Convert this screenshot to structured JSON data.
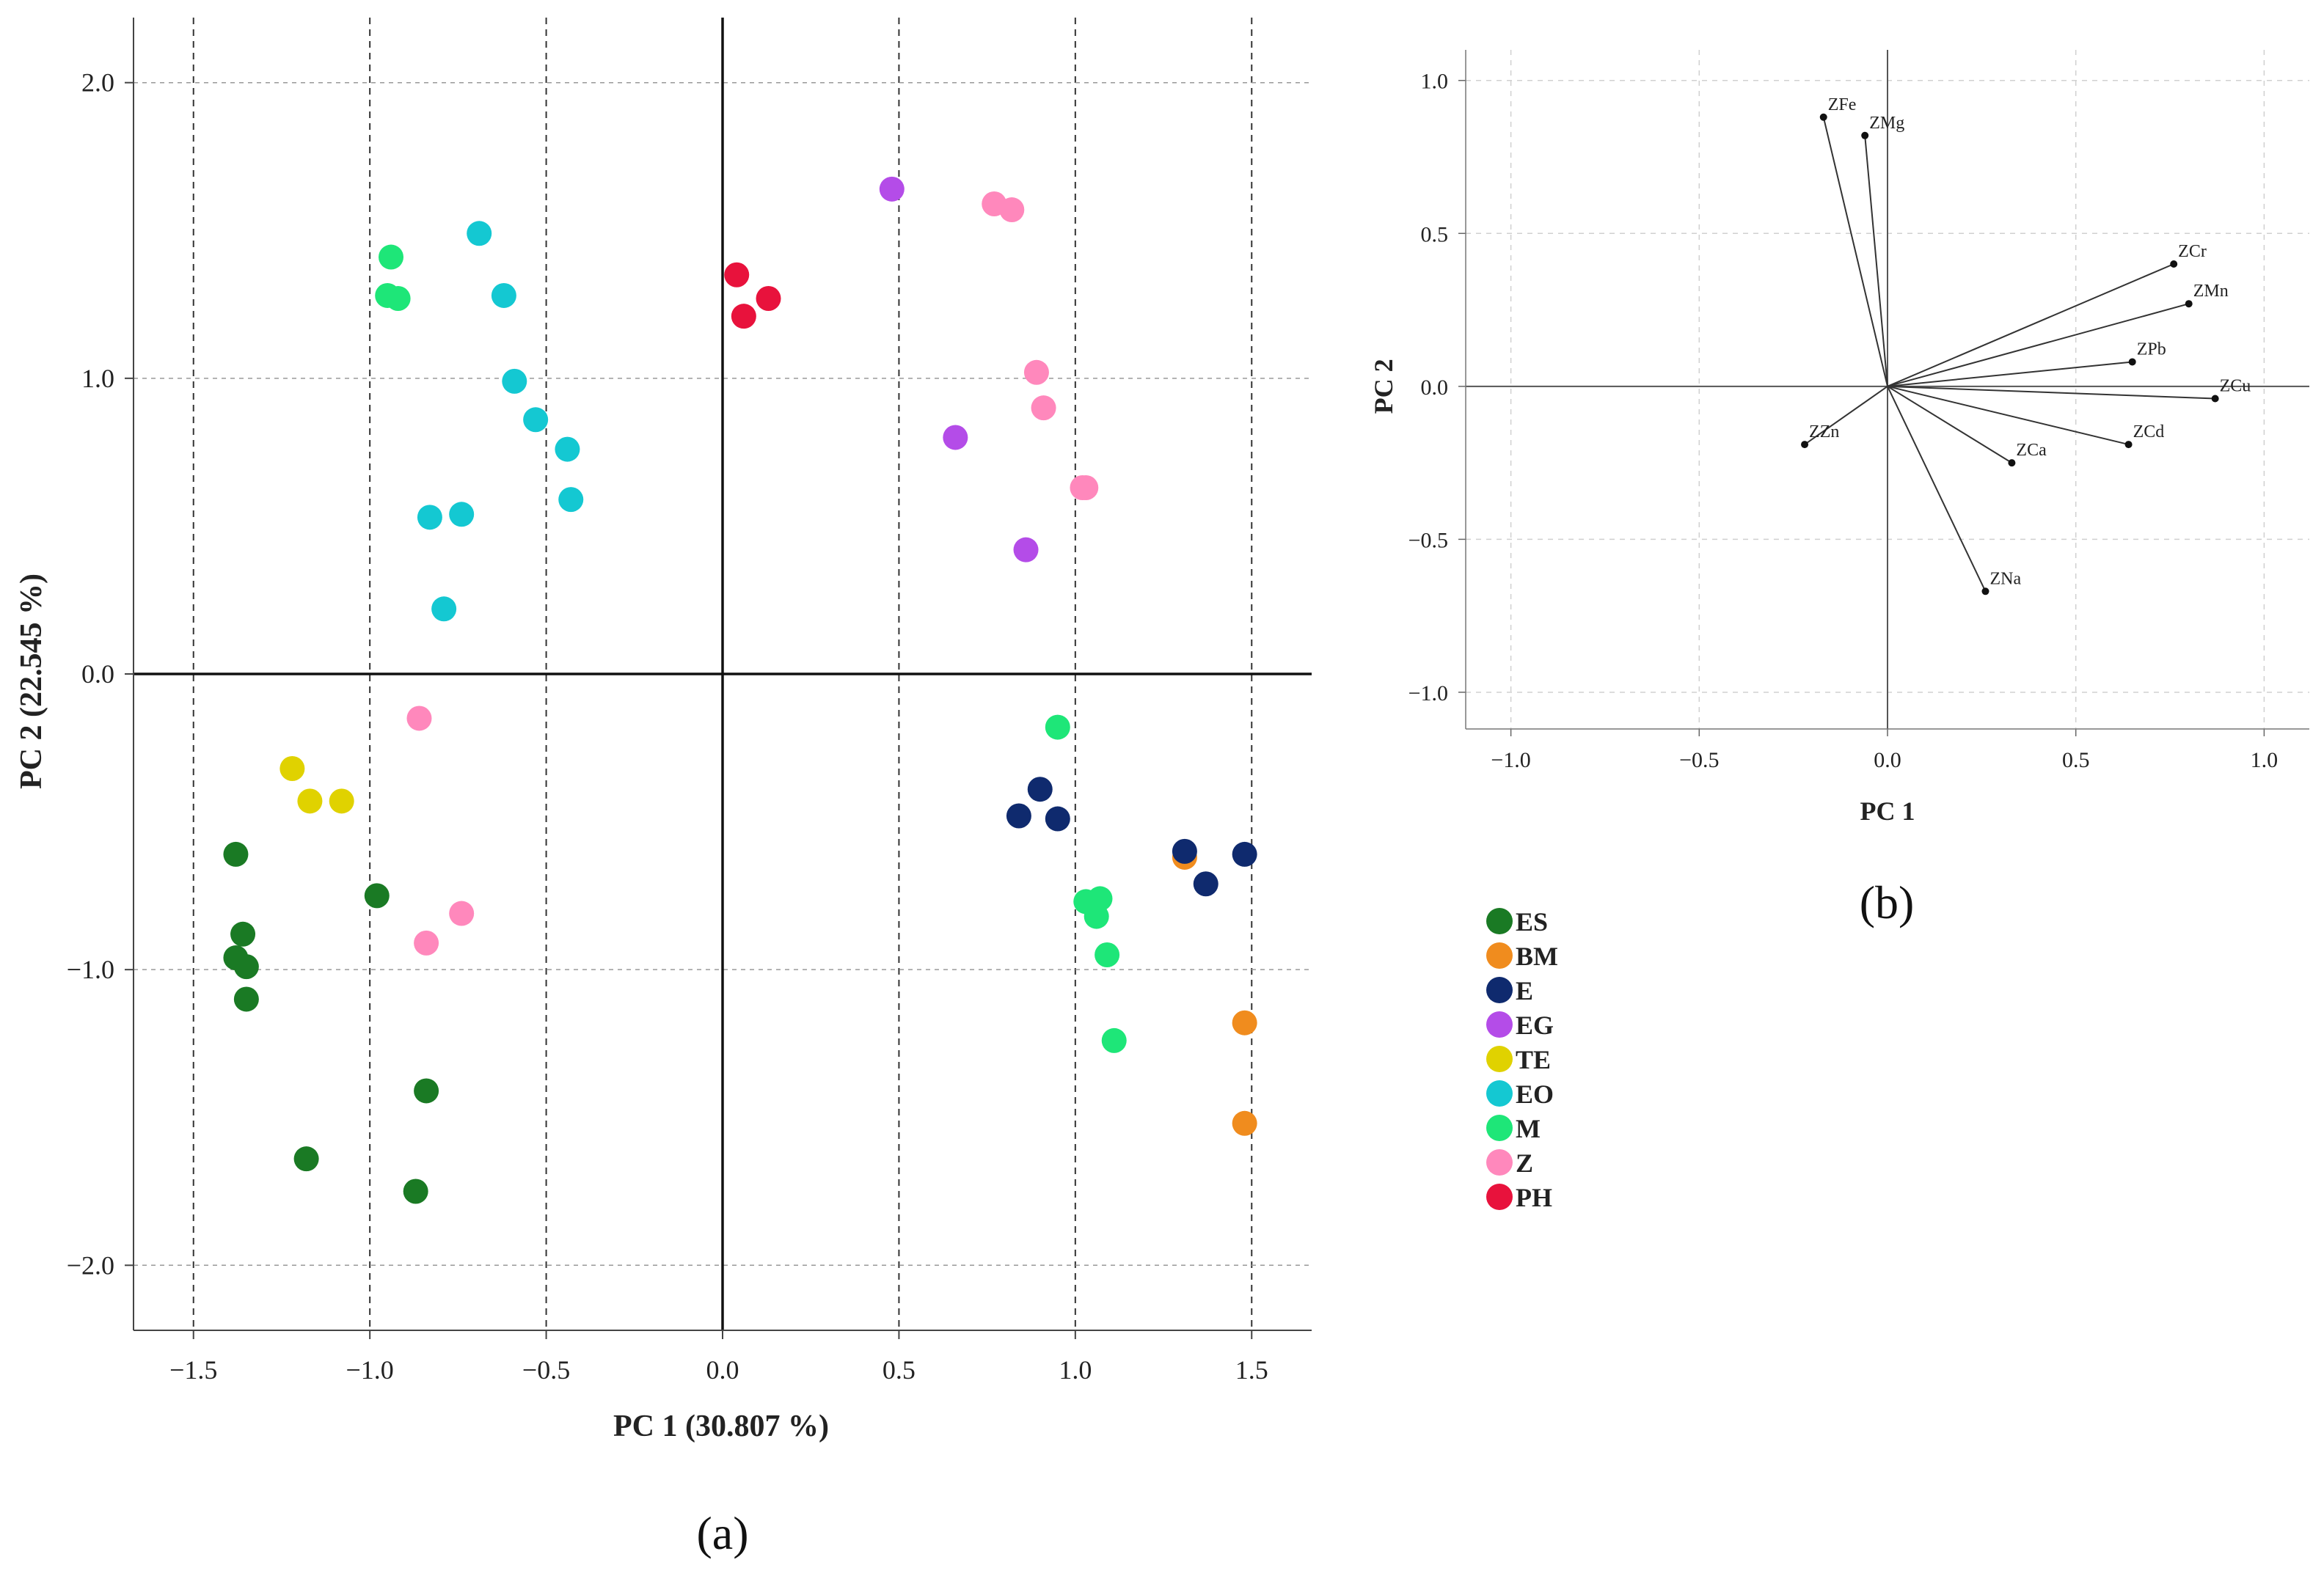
{
  "chart_data": [
    {
      "id": "a",
      "type": "scatter",
      "panel_label": "(a)",
      "xlabel": "PC 1 (30.807 %)",
      "ylabel": "PC 2 (22.545 %)",
      "xlim": [
        -1.67,
        1.67
      ],
      "ylim": [
        -2.22,
        2.22
      ],
      "xticks": [
        -1.5,
        -1.0,
        -0.5,
        0.0,
        0.5,
        1.0,
        1.5
      ],
      "xtick_labels": [
        "−1.5",
        "−1.0",
        "−0.5",
        "0.0",
        "0.5",
        "1.0",
        "1.5"
      ],
      "yticks": [
        -2.0,
        -1.0,
        0.0,
        1.0,
        2.0
      ],
      "ytick_labels": [
        "−2.0",
        "−1.0",
        "0.0",
        "1.0",
        "2.0"
      ],
      "grid": true,
      "legend_placement": "bottom-right-outside",
      "series": [
        {
          "name": "ES",
          "color": "#1a7a24",
          "points": [
            [
              -1.38,
              -0.61
            ],
            [
              -1.36,
              -0.88
            ],
            [
              -1.38,
              -0.96
            ],
            [
              -1.35,
              -0.99
            ],
            [
              -1.35,
              -1.1
            ],
            [
              -0.98,
              -0.75
            ],
            [
              -1.18,
              -1.64
            ],
            [
              -0.84,
              -1.41
            ],
            [
              -0.87,
              -1.75
            ]
          ]
        },
        {
          "name": "BM",
          "color": "#f08c1e",
          "points": [
            [
              1.31,
              -0.62
            ],
            [
              1.48,
              -1.18
            ],
            [
              1.48,
              -1.52
            ]
          ]
        },
        {
          "name": "E",
          "color": "#0f2a6e",
          "points": [
            [
              0.84,
              -0.48
            ],
            [
              0.9,
              -0.39
            ],
            [
              0.95,
              -0.49
            ],
            [
              1.31,
              -0.6
            ],
            [
              1.37,
              -0.71
            ],
            [
              1.48,
              -0.61
            ]
          ]
        },
        {
          "name": "EG",
          "color": "#b44ce8",
          "points": [
            [
              0.48,
              1.64
            ],
            [
              0.66,
              0.8
            ],
            [
              0.86,
              0.42
            ]
          ]
        },
        {
          "name": "TE",
          "color": "#e0d200",
          "points": [
            [
              -1.22,
              -0.32
            ],
            [
              -1.17,
              -0.43
            ],
            [
              -1.08,
              -0.43
            ]
          ]
        },
        {
          "name": "EO",
          "color": "#14c8d2",
          "points": [
            [
              -0.69,
              1.49
            ],
            [
              -0.62,
              1.28
            ],
            [
              -0.59,
              0.99
            ],
            [
              -0.53,
              0.86
            ],
            [
              -0.44,
              0.76
            ],
            [
              -0.43,
              0.59
            ],
            [
              -0.83,
              0.53
            ],
            [
              -0.74,
              0.54
            ],
            [
              -0.79,
              0.22
            ]
          ]
        },
        {
          "name": "M",
          "color": "#1ee678",
          "points": [
            [
              -0.94,
              1.41
            ],
            [
              -0.95,
              1.28
            ],
            [
              -0.92,
              1.27
            ],
            [
              0.95,
              -0.18
            ],
            [
              1.03,
              -0.77
            ],
            [
              1.07,
              -0.76
            ],
            [
              1.06,
              -0.82
            ],
            [
              1.09,
              -0.95
            ],
            [
              1.11,
              -1.24
            ]
          ]
        },
        {
          "name": "Z",
          "color": "#ff88bc",
          "points": [
            [
              0.77,
              1.59
            ],
            [
              0.82,
              1.57
            ],
            [
              0.89,
              1.02
            ],
            [
              0.91,
              0.9
            ],
            [
              1.02,
              0.63
            ],
            [
              1.03,
              0.63
            ],
            [
              -0.86,
              -0.15
            ],
            [
              -0.74,
              -0.81
            ],
            [
              -0.84,
              -0.91
            ]
          ]
        },
        {
          "name": "PH",
          "color": "#e8123c",
          "points": [
            [
              0.04,
              1.35
            ],
            [
              0.06,
              1.21
            ],
            [
              0.13,
              1.27
            ]
          ]
        }
      ]
    },
    {
      "id": "b",
      "type": "line",
      "subtype": "loading-vectors",
      "panel_label": "(b)",
      "xlabel": "PC 1",
      "ylabel": "PC 2",
      "xlim": [
        -1.12,
        1.12
      ],
      "ylim": [
        -1.12,
        1.1
      ],
      "xticks": [
        -1.0,
        -0.5,
        0.0,
        0.5,
        1.0
      ],
      "xtick_labels": [
        "−1.0",
        "−0.5",
        "0.0",
        "0.5",
        "1.0"
      ],
      "yticks": [
        -1.0,
        -0.5,
        0.0,
        0.5,
        1.0
      ],
      "ytick_labels": [
        "−1.0",
        "−0.5",
        "0.0",
        "0.5",
        "1.0"
      ],
      "grid": true,
      "vectors": [
        {
          "label": "ZFe",
          "x": -0.17,
          "y": 0.88
        },
        {
          "label": "ZMg",
          "x": -0.06,
          "y": 0.82
        },
        {
          "label": "ZCr",
          "x": 0.76,
          "y": 0.4
        },
        {
          "label": "ZMn",
          "x": 0.8,
          "y": 0.27
        },
        {
          "label": "ZPb",
          "x": 0.65,
          "y": 0.08
        },
        {
          "label": "ZCu",
          "x": 0.87,
          "y": -0.04
        },
        {
          "label": "ZZn",
          "x": -0.22,
          "y": -0.19
        },
        {
          "label": "ZCa",
          "x": 0.33,
          "y": -0.25
        },
        {
          "label": "ZCd",
          "x": 0.64,
          "y": -0.19
        },
        {
          "label": "ZNa",
          "x": 0.26,
          "y": -0.67
        }
      ]
    }
  ]
}
